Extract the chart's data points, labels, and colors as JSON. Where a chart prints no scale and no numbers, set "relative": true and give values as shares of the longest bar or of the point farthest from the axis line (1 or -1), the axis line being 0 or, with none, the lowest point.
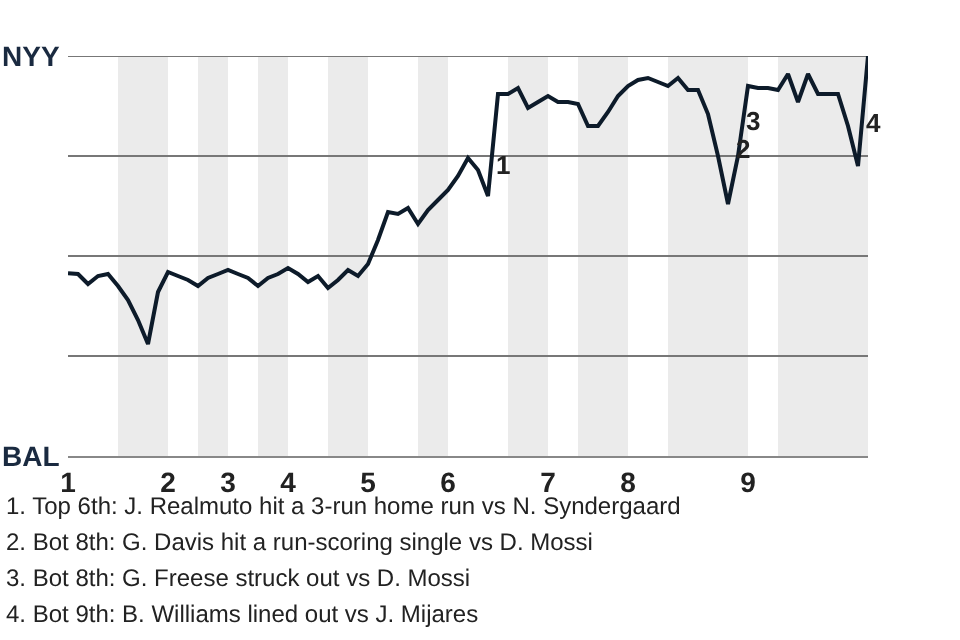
{
  "chart_data": {
    "type": "line",
    "relative": true,
    "categories": [
      "1",
      null,
      null,
      null,
      null,
      null,
      null,
      null,
      null,
      null,
      "2",
      null,
      null,
      null,
      null,
      null,
      "3",
      null,
      null,
      null,
      null,
      null,
      "4",
      null,
      null,
      null,
      null,
      null,
      null,
      null,
      "5",
      null,
      null,
      null,
      null,
      null,
      null,
      null,
      "6",
      null,
      null,
      null,
      null,
      null,
      null,
      null,
      null,
      null,
      "7",
      null,
      null,
      null,
      null,
      null,
      null,
      null,
      "8",
      null,
      null,
      null,
      null,
      null,
      null,
      null,
      null,
      null,
      null,
      null,
      "9",
      null,
      null,
      null,
      null,
      null,
      null,
      null,
      null,
      null,
      null,
      null,
      null
    ],
    "series": [
      {
        "color": "#0d1b2a",
        "values": [
          0.457,
          0.455,
          0.43,
          0.45,
          0.455,
          0.425,
          0.39,
          0.34,
          0.28,
          0.41,
          0.46,
          0.45,
          0.44,
          0.425,
          0.445,
          0.455,
          0.465,
          0.455,
          0.445,
          0.425,
          0.445,
          0.455,
          0.47,
          0.455,
          0.435,
          0.45,
          0.42,
          0.44,
          0.465,
          0.45,
          0.48,
          0.54,
          0.61,
          0.605,
          0.62,
          0.58,
          0.615,
          0.64,
          0.665,
          0.7,
          0.745,
          0.715,
          0.65,
          0.905,
          0.905,
          0.92,
          0.87,
          0.885,
          0.9,
          0.885,
          0.885,
          0.88,
          0.825,
          0.825,
          0.86,
          0.9,
          0.925,
          0.94,
          0.945,
          0.935,
          0.925,
          0.945,
          0.915,
          0.915,
          0.855,
          0.75,
          0.63,
          0.75,
          0.925,
          0.92,
          0.92,
          0.915,
          0.955,
          0.885,
          0.955,
          0.905,
          0.905,
          0.905,
          0.825,
          0.725,
          1
        ]
      }
    ],
    "legend": false,
    "marker": "none",
    "line_style": "solid",
    "annotations": [
      "NYY",
      "BAL",
      "1",
      "2",
      "3",
      "4",
      "1. Top 6th: J. Realmuto hit a 3-run home run vs N. Syndergaard",
      "2. Bot 8th: G. Davis hit a run-scoring single vs D. Mossi",
      "3. Bot 8th: G. Freese struck out vs D. Mossi",
      "4. Bot 9th: B. Williams lined out vs J. Mijares"
    ]
  }
}
